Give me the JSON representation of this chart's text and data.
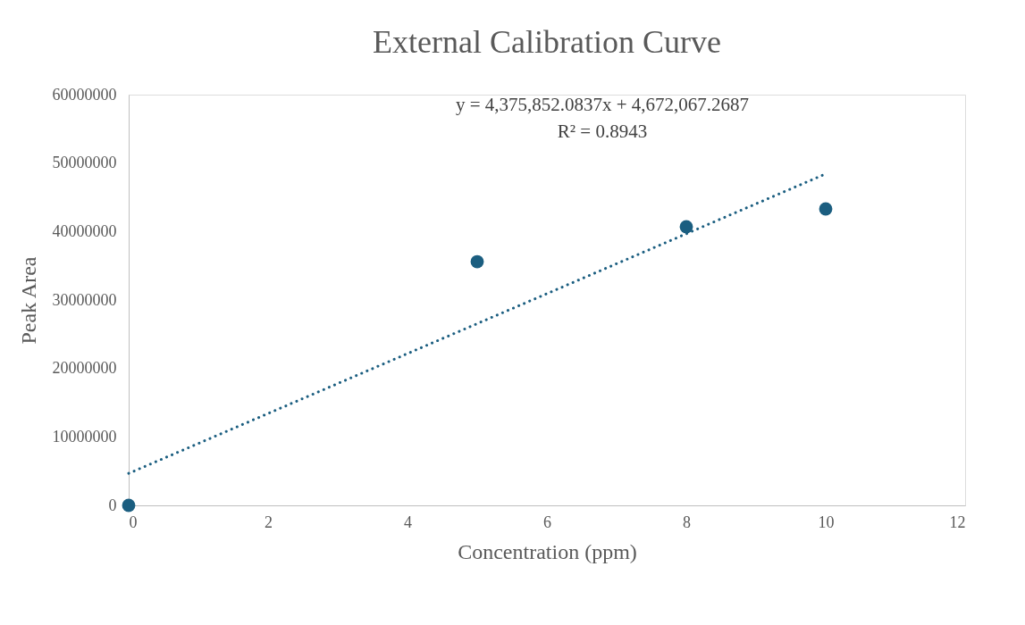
{
  "chart_data": {
    "type": "scatter",
    "title": "External Calibration Curve",
    "xlabel": "Concentration (ppm)",
    "ylabel": "Peak Area",
    "xlim": [
      0,
      12
    ],
    "xticks": [
      0,
      2,
      4,
      6,
      8,
      10,
      12
    ],
    "ylim": [
      0,
      60000000
    ],
    "yticks": [
      0,
      10000000,
      20000000,
      30000000,
      40000000,
      50000000,
      60000000
    ],
    "grid": false,
    "series": [
      {
        "color": "#1b5e80",
        "marker": "circle",
        "x": [
          0,
          5,
          8,
          10
        ],
        "values": [
          0,
          35600000,
          40700000,
          43300000
        ]
      },
      {
        "type": "line",
        "color": "#1b5e80",
        "line_style": "dotted",
        "marker": "none",
        "x": [
          0,
          10
        ],
        "values": [
          4670000,
          48430000
        ]
      }
    ],
    "annotations": [
      "y = 4,375,852.0837x  + 4,672,067.2687",
      "R² = 0.8943"
    ]
  }
}
